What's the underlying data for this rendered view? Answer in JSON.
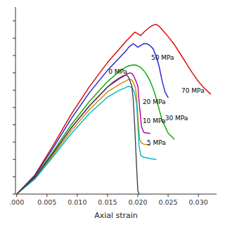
{
  "chart_data": {
    "type": "line",
    "xlabel": "Axial strain",
    "xlim": [
      -0.0002,
      0.033
    ],
    "ylim": [
      0,
      1.08
    ],
    "xticks": [
      {
        "value": 0.0,
        "label": ".000"
      },
      {
        "value": 0.005,
        "label": "0.005"
      },
      {
        "value": 0.01,
        "label": "0.010"
      },
      {
        "value": 0.015,
        "label": "0.015"
      },
      {
        "value": 0.02,
        "label": "0.020"
      },
      {
        "value": 0.025,
        "label": "0.025"
      },
      {
        "value": 0.03,
        "label": "0.030"
      }
    ],
    "yticks": [
      0,
      0.1,
      0.2,
      0.3,
      0.4,
      0.5,
      0.6,
      0.7,
      0.8,
      0.9,
      1.0
    ],
    "tick_labels": "x",
    "grid": false,
    "series": [
      {
        "name": "70 MPa",
        "color": "#dd0000",
        "label_x": 0.0272,
        "label_y": 0.595,
        "x": [
          0.0,
          0.003,
          0.006,
          0.009,
          0.012,
          0.015,
          0.018,
          0.0195,
          0.02,
          0.0205,
          0.021,
          0.0215,
          0.022,
          0.0225,
          0.023,
          0.0235,
          0.024,
          0.025,
          0.026,
          0.027,
          0.028,
          0.029,
          0.03,
          0.031,
          0.032
        ],
        "values": [
          0.0,
          0.11,
          0.28,
          0.46,
          0.62,
          0.76,
          0.88,
          0.935,
          0.925,
          0.915,
          0.935,
          0.95,
          0.965,
          0.975,
          0.98,
          0.97,
          0.95,
          0.91,
          0.865,
          0.81,
          0.755,
          0.7,
          0.65,
          0.61,
          0.578
        ]
      },
      {
        "name": "50 MPa",
        "color": "#2020cc",
        "label_x": 0.0222,
        "label_y": 0.785,
        "x": [
          0.0,
          0.003,
          0.006,
          0.009,
          0.012,
          0.015,
          0.018,
          0.0185,
          0.019,
          0.01925,
          0.0195,
          0.02,
          0.0205,
          0.021,
          0.0215,
          0.022,
          0.0225,
          0.023,
          0.0235,
          0.024,
          0.0245,
          0.025
        ],
        "values": [
          0.0,
          0.105,
          0.265,
          0.435,
          0.585,
          0.715,
          0.825,
          0.848,
          0.862,
          0.868,
          0.862,
          0.848,
          0.858,
          0.868,
          0.868,
          0.858,
          0.84,
          0.8,
          0.74,
          0.655,
          0.588,
          0.558
        ]
      },
      {
        "name": "30 MPa",
        "color": "#00aa00",
        "label_x": 0.0245,
        "label_y": 0.435,
        "x": [
          0.0,
          0.003,
          0.006,
          0.009,
          0.012,
          0.015,
          0.017,
          0.018,
          0.0185,
          0.019,
          0.01935,
          0.0196,
          0.02,
          0.0205,
          0.021,
          0.0215,
          0.022,
          0.0225,
          0.023,
          0.0235,
          0.024,
          0.025,
          0.026
        ],
        "values": [
          0.0,
          0.098,
          0.245,
          0.4,
          0.535,
          0.65,
          0.71,
          0.732,
          0.74,
          0.744,
          0.746,
          0.745,
          0.74,
          0.73,
          0.712,
          0.688,
          0.655,
          0.612,
          0.558,
          0.492,
          0.428,
          0.352,
          0.318
        ]
      },
      {
        "name": "20 MPa",
        "color": "#aa00aa",
        "label_x": 0.0208,
        "label_y": 0.53,
        "x": [
          0.0,
          0.003,
          0.006,
          0.009,
          0.012,
          0.015,
          0.017,
          0.018,
          0.01825,
          0.0185,
          0.01875,
          0.019,
          0.01925,
          0.0195,
          0.02,
          0.0203,
          0.0206,
          0.021,
          0.022
        ],
        "values": [
          0.0,
          0.095,
          0.235,
          0.383,
          0.51,
          0.618,
          0.667,
          0.688,
          0.694,
          0.698,
          0.7,
          0.696,
          0.686,
          0.668,
          0.625,
          0.5,
          0.39,
          0.355,
          0.35
        ]
      },
      {
        "name": "10 MPa",
        "color": "#cc8800",
        "label_x": 0.0208,
        "label_y": 0.42,
        "x": [
          0.0,
          0.003,
          0.006,
          0.009,
          0.012,
          0.015,
          0.017,
          0.018,
          0.01825,
          0.0185,
          0.01875,
          0.019,
          0.01925,
          0.0196,
          0.0198,
          0.02,
          0.0203,
          0.0206,
          0.021,
          0.022
        ],
        "values": [
          0.0,
          0.09,
          0.225,
          0.365,
          0.488,
          0.59,
          0.635,
          0.652,
          0.658,
          0.662,
          0.662,
          0.658,
          0.645,
          0.615,
          0.56,
          0.45,
          0.315,
          0.295,
          0.288,
          0.282
        ]
      },
      {
        "name": "5 MPa",
        "color": "#00bbbb",
        "label_x": 0.0215,
        "label_y": 0.295,
        "x": [
          0.0,
          0.003,
          0.006,
          0.009,
          0.012,
          0.015,
          0.017,
          0.018,
          0.01825,
          0.0185,
          0.019,
          0.01925,
          0.0195,
          0.0198,
          0.02,
          0.0202,
          0.0205,
          0.021,
          0.022,
          0.023
        ],
        "values": [
          0.0,
          0.086,
          0.215,
          0.348,
          0.465,
          0.56,
          0.6,
          0.615,
          0.62,
          0.622,
          0.616,
          0.604,
          0.578,
          0.52,
          0.408,
          0.278,
          0.222,
          0.212,
          0.205,
          0.2
        ]
      },
      {
        "name": "0 MPa",
        "color": "#444444",
        "label_x": 0.01515,
        "label_y": 0.705,
        "x": [
          0.0,
          0.003,
          0.006,
          0.009,
          0.012,
          0.015,
          0.016,
          0.017,
          0.0175,
          0.018,
          0.01825,
          0.0185,
          0.019,
          0.01925,
          0.0195,
          0.0198,
          0.02,
          0.0202
        ],
        "values": [
          0.0,
          0.095,
          0.235,
          0.381,
          0.508,
          0.618,
          0.648,
          0.672,
          0.682,
          0.688,
          0.685,
          0.672,
          0.625,
          0.545,
          0.385,
          0.155,
          0.02,
          0.002
        ]
      }
    ]
  }
}
